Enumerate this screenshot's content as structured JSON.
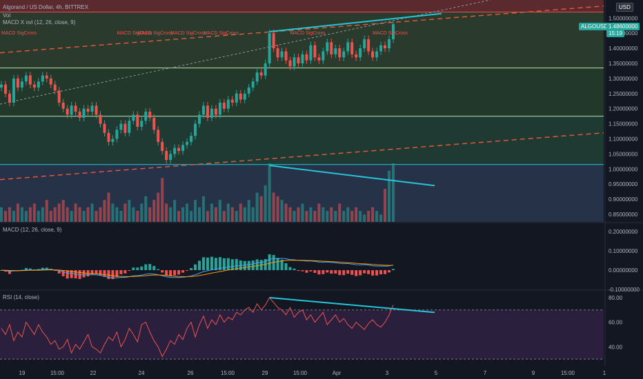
{
  "header": {
    "symbol_line": "Algorand / US Dollar, 4h, BITTREX",
    "vol_label": "Vol",
    "macd_overlay_label": "MACD X ovl (12, 26, close, 9)",
    "currency_button": "USD"
  },
  "badges": {
    "symbol": "ALGOUSD",
    "price": "1.48600000",
    "countdown": "15:19"
  },
  "macd_pane": {
    "label": "MACD (12, 26, close, 9)"
  },
  "rsi_pane": {
    "label": "RSI (14, close)"
  },
  "annotations": [
    {
      "text": "MACD SigCross",
      "x_bar": 0
    },
    {
      "text": "MACD SigCross",
      "x_bar": 28
    },
    {
      "text": "MACD SigCross",
      "x_bar": 33
    },
    {
      "text": "MACD SigCross",
      "x_bar": 41
    },
    {
      "text": "MACD SigCross",
      "x_bar": 49
    },
    {
      "text": "MACD SigCross",
      "x_bar": 70
    },
    {
      "text": "MACD SigCross",
      "x_bar": 90
    }
  ],
  "colors": {
    "up": "#26a69a",
    "down": "#ef5350",
    "background": "#131722",
    "trendline": "#26c6da",
    "dashed": "#e0593d",
    "rsi_line": "#ef5350",
    "hline": "#b7e5a3"
  },
  "chart_data": [
    {
      "type": "candlestick",
      "name": "price",
      "ylim": [
        0.825,
        1.56
      ],
      "y_ticks": [
        "1.50000000",
        "1.45000000",
        "1.40000000",
        "1.35000000",
        "1.30000000",
        "1.25000000",
        "1.20000000",
        "1.15000000",
        "1.10000000",
        "1.05000000",
        "1.00000000",
        "0.95000000",
        "0.90000000",
        "0.85000000"
      ],
      "x_ticks": [
        "19",
        "15:00",
        "22",
        "24",
        "26",
        "15:00",
        "29",
        "15:00",
        "Apr",
        "3",
        "5",
        "7",
        "9",
        "15:00",
        "1"
      ],
      "closes": [
        1.28,
        1.25,
        1.22,
        1.3,
        1.27,
        1.29,
        1.31,
        1.28,
        1.27,
        1.29,
        1.31,
        1.3,
        1.28,
        1.26,
        1.22,
        1.2,
        1.18,
        1.21,
        1.19,
        1.17,
        1.2,
        1.19,
        1.21,
        1.18,
        1.15,
        1.12,
        1.09,
        1.1,
        1.13,
        1.15,
        1.12,
        1.16,
        1.18,
        1.14,
        1.16,
        1.19,
        1.17,
        1.13,
        1.09,
        1.06,
        1.03,
        1.05,
        1.07,
        1.06,
        1.08,
        1.09,
        1.11,
        1.15,
        1.18,
        1.21,
        1.17,
        1.2,
        1.18,
        1.22,
        1.2,
        1.23,
        1.22,
        1.25,
        1.23,
        1.25,
        1.27,
        1.29,
        1.32,
        1.31,
        1.35,
        1.45,
        1.4,
        1.37,
        1.39,
        1.36,
        1.34,
        1.37,
        1.35,
        1.38,
        1.36,
        1.41,
        1.37,
        1.36,
        1.39,
        1.42,
        1.38,
        1.4,
        1.37,
        1.39,
        1.42,
        1.38,
        1.37,
        1.4,
        1.43,
        1.39,
        1.37,
        1.39,
        1.41,
        1.4,
        1.43,
        1.48
      ],
      "volumes": [
        4,
        3,
        4,
        3,
        5,
        4,
        3,
        4,
        5,
        3,
        4,
        6,
        3,
        4,
        5,
        6,
        4,
        3,
        5,
        4,
        3,
        4,
        5,
        3,
        4,
        6,
        8,
        5,
        4,
        3,
        5,
        6,
        4,
        3,
        5,
        7,
        4,
        6,
        8,
        12,
        5,
        4,
        6,
        3,
        4,
        5,
        3,
        6,
        4,
        7,
        3,
        5,
        4,
        6,
        3,
        5,
        4,
        3,
        5,
        4,
        6,
        4,
        8,
        7,
        10,
        16,
        8,
        7,
        6,
        5,
        4,
        3,
        4,
        5,
        3,
        4,
        3,
        5,
        4,
        3,
        4,
        3,
        5,
        3,
        4,
        3,
        4,
        3,
        2,
        3,
        4,
        3,
        2,
        9,
        14,
        16
      ]
    },
    {
      "type": "line",
      "name": "MACD",
      "ylim": [
        -0.1,
        0.24
      ],
      "y_ticks": [
        "0.20000000",
        "0.10000000",
        "0.00000000",
        "-0.10000000"
      ]
    },
    {
      "type": "line",
      "name": "RSI",
      "ylim": [
        25,
        85
      ],
      "y_ticks": [
        "80.00",
        "60.00",
        "40.00"
      ],
      "values": [
        55,
        50,
        58,
        45,
        52,
        48,
        60,
        55,
        50,
        58,
        52,
        48,
        42,
        45,
        38,
        40,
        46,
        35,
        42,
        38,
        44,
        50,
        40,
        38,
        35,
        42,
        48,
        45,
        52,
        40,
        46,
        55,
        50,
        44,
        58,
        60,
        52,
        45,
        40,
        32,
        38,
        45,
        42,
        50,
        46,
        55,
        60,
        48,
        58,
        65,
        55,
        62,
        58,
        66,
        60,
        64,
        62,
        68,
        66,
        70,
        72,
        68,
        75,
        70,
        74,
        80,
        76,
        72,
        70,
        66,
        72,
        64,
        68,
        70,
        62,
        66,
        60,
        64,
        68,
        58,
        62,
        66,
        60,
        63,
        58,
        55,
        60,
        57,
        54,
        59,
        62,
        58,
        56,
        60,
        66,
        74
      ]
    }
  ]
}
